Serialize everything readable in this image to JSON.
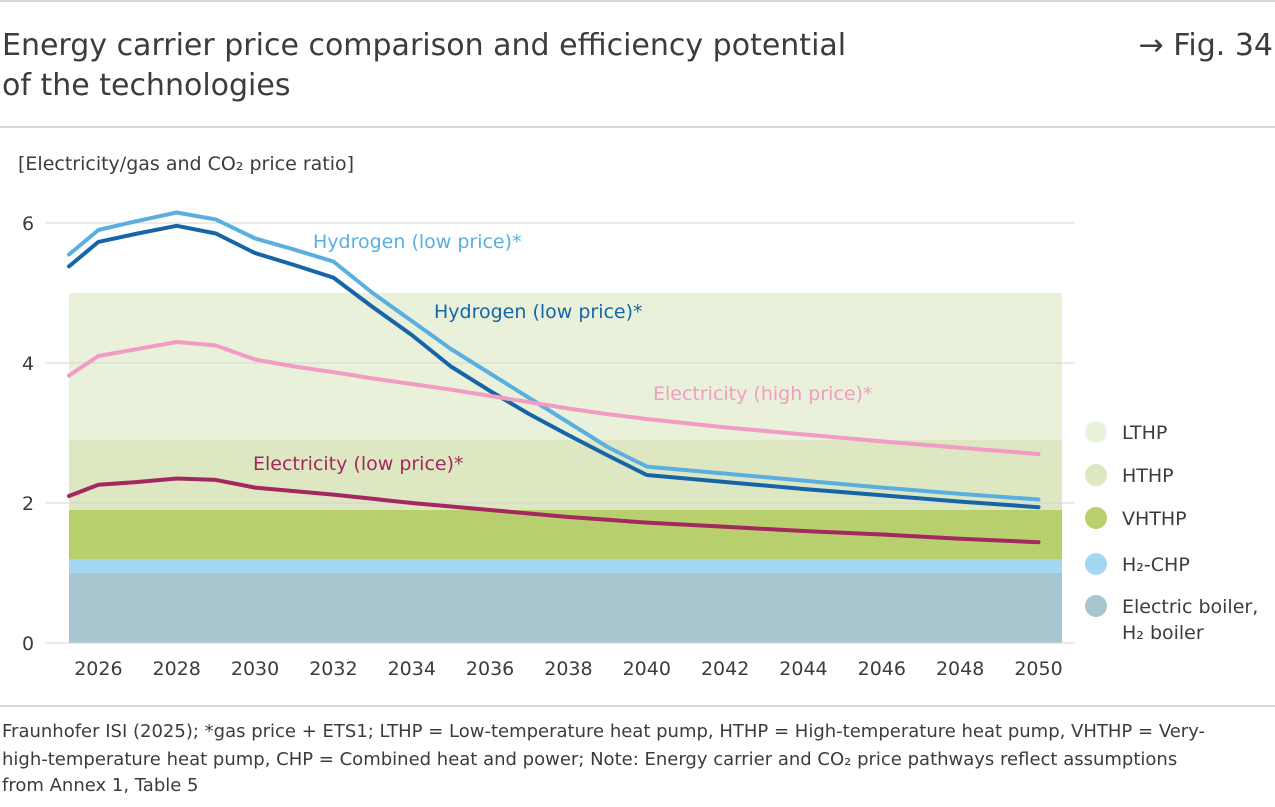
{
  "chart_data": {
    "type": "line",
    "title_lines": [
      "Energy carrier price comparison and efficiency potential",
      "of the technologies"
    ],
    "figure_ref": "→ Fig. 34",
    "y_axis_label": "[Electricity/gas and CO₂ price ratio]",
    "x": [
      2025.25,
      2026,
      2027,
      2028,
      2029,
      2030,
      2031,
      2032,
      2033,
      2034,
      2035,
      2036,
      2037,
      2038,
      2039,
      2040,
      2042,
      2044,
      2046,
      2048,
      2050
    ],
    "series": [
      {
        "name": "Hydrogen (low price)*",
        "color": "#5aaee0",
        "values": [
          5.55,
          5.9,
          6.03,
          6.15,
          6.05,
          5.78,
          5.62,
          5.45,
          5.0,
          4.6,
          4.2,
          3.85,
          3.5,
          3.15,
          2.8,
          2.52,
          2.42,
          2.32,
          2.22,
          2.13,
          2.05
        ]
      },
      {
        "name": "Hydrogen (low price)*",
        "color": "#1565a8",
        "values": [
          5.38,
          5.73,
          5.85,
          5.96,
          5.85,
          5.57,
          5.4,
          5.22,
          4.8,
          4.4,
          3.95,
          3.6,
          3.27,
          2.97,
          2.68,
          2.4,
          2.3,
          2.2,
          2.11,
          2.02,
          1.94
        ]
      },
      {
        "name": "Electricity (high price)*",
        "color": "#f09cc4",
        "values": [
          3.82,
          4.1,
          4.2,
          4.3,
          4.25,
          4.05,
          3.95,
          3.87,
          3.78,
          3.7,
          3.62,
          3.53,
          3.44,
          3.35,
          3.27,
          3.2,
          3.08,
          2.98,
          2.88,
          2.79,
          2.7
        ]
      },
      {
        "name": "Electricity (low price)*",
        "color": "#a4275e",
        "values": [
          2.1,
          2.26,
          2.3,
          2.35,
          2.33,
          2.22,
          2.17,
          2.12,
          2.06,
          2.0,
          1.95,
          1.9,
          1.85,
          1.8,
          1.76,
          1.72,
          1.66,
          1.6,
          1.55,
          1.49,
          1.44
        ]
      }
    ],
    "bands": [
      {
        "label": [
          "LTHP"
        ],
        "color": "#eaf1da",
        "range": [
          2.9,
          5
        ]
      },
      {
        "label": [
          "HTHP"
        ],
        "color": "#dde8c3",
        "range": [
          1.9,
          2.9
        ]
      },
      {
        "label": [
          "VHTHP"
        ],
        "color": "#b8cf6e",
        "range": [
          1.2,
          1.9
        ]
      },
      {
        "label": [
          "H₂-CHP"
        ],
        "color": "#a4d8f2",
        "range": [
          1,
          1.2
        ]
      },
      {
        "label": [
          "Electric boiler,",
          "H₂ boiler"
        ],
        "color": "#a8c5d0",
        "range": [
          0,
          1
        ]
      }
    ],
    "xlim": [
      2025.25,
      2050.6
    ],
    "ylim": [
      0,
      6
    ],
    "xticks": [
      2026,
      2028,
      2030,
      2032,
      2034,
      2036,
      2038,
      2040,
      2042,
      2044,
      2046,
      2048,
      2050
    ],
    "yticks": [
      0,
      2,
      4,
      6
    ],
    "grid": true,
    "source_lines": [
      "Fraunhofer ISI (2025); *gas price + ETS1; LTHP = Low-temperature heat pump, HTHP = High-temperature heat pump, VHTHP = Very-",
      "high-temperature heat pump, CHP = Combined heat and power; Note: Energy carrier and CO₂ price pathways reflect assumptions",
      "from Annex 1, Table 5"
    ]
  }
}
